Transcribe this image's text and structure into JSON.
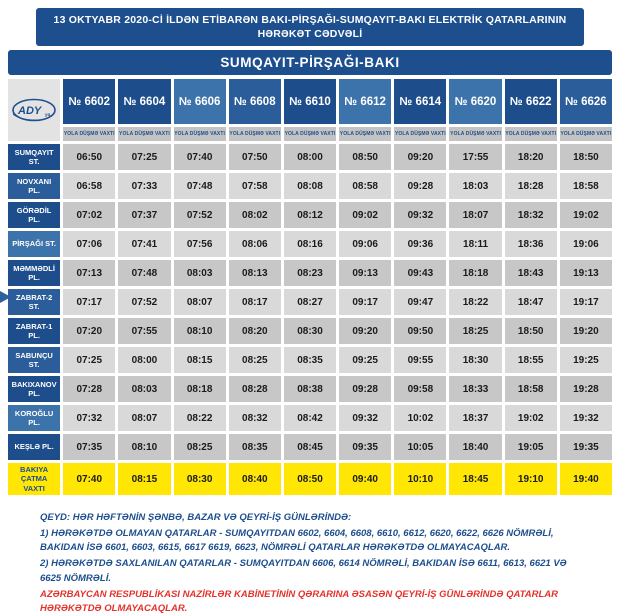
{
  "header": {
    "title_line1": "13 OKTYABR 2020-Cİ İLDƏN ETİBARƏN BAKI-PİRŞAĞI-SUMQAYIT-BAKI ELEKTRİK QATARLARININ",
    "title_line2": "HƏRƏKƏT CƏDVƏLİ",
    "route_title": "SUMQAYIT-PİRŞAĞI-BAKI"
  },
  "logo": {
    "text": "ADY",
    "suffix": "yq."
  },
  "table": {
    "departure_label": "YOLA DÜŞMƏ VAXTI",
    "columns": [
      {
        "number": "№ 6602",
        "shade": "dark"
      },
      {
        "number": "№ 6604",
        "shade": "dark"
      },
      {
        "number": "№ 6606",
        "shade": "light"
      },
      {
        "number": "№ 6608",
        "shade": "medium"
      },
      {
        "number": "№ 6610",
        "shade": "dark"
      },
      {
        "number": "№ 6612",
        "shade": "light"
      },
      {
        "number": "№ 6614",
        "shade": "dark"
      },
      {
        "number": "№ 6620",
        "shade": "light"
      },
      {
        "number": "№ 6622",
        "shade": "dark"
      },
      {
        "number": "№ 6626",
        "shade": "medium"
      }
    ],
    "rows": [
      {
        "station": "SUMQAYIT ST.",
        "shade": "dark",
        "times": [
          "06:50",
          "07:25",
          "07:40",
          "07:50",
          "08:00",
          "08:50",
          "09:20",
          "17:55",
          "18:20",
          "18:50"
        ]
      },
      {
        "station": "NOVXANI PL.",
        "shade": "medium",
        "times": [
          "06:58",
          "07:33",
          "07:48",
          "07:58",
          "08:08",
          "08:58",
          "09:28",
          "18:03",
          "18:28",
          "18:58"
        ]
      },
      {
        "station": "GÖRƏDİL PL.",
        "shade": "dark",
        "times": [
          "07:02",
          "07:37",
          "07:52",
          "08:02",
          "08:12",
          "09:02",
          "09:32",
          "18:07",
          "18:32",
          "19:02"
        ]
      },
      {
        "station": "PİRŞAĞI ST.",
        "shade": "light",
        "times": [
          "07:06",
          "07:41",
          "07:56",
          "08:06",
          "08:16",
          "09:06",
          "09:36",
          "18:11",
          "18:36",
          "19:06"
        ]
      },
      {
        "station": "MƏMMƏDLİ PL.",
        "shade": "dark",
        "times": [
          "07:13",
          "07:48",
          "08:03",
          "08:13",
          "08:23",
          "09:13",
          "09:43",
          "18:18",
          "18:43",
          "19:13"
        ]
      },
      {
        "station": "ZABRAT-2 ST.",
        "shade": "medium",
        "times": [
          "07:17",
          "07:52",
          "08:07",
          "08:17",
          "08:27",
          "09:17",
          "09:47",
          "18:22",
          "18:47",
          "19:17"
        ]
      },
      {
        "station": "ZABRAT-1 PL.",
        "shade": "dark",
        "times": [
          "07:20",
          "07:55",
          "08:10",
          "08:20",
          "08:30",
          "09:20",
          "09:50",
          "18:25",
          "18:50",
          "19:20"
        ]
      },
      {
        "station": "SABUNÇU ST.",
        "shade": "medium",
        "times": [
          "07:25",
          "08:00",
          "08:15",
          "08:25",
          "08:35",
          "09:25",
          "09:55",
          "18:30",
          "18:55",
          "19:25"
        ]
      },
      {
        "station": "BAKIXANOV PL.",
        "shade": "dark",
        "times": [
          "07:28",
          "08:03",
          "08:18",
          "08:28",
          "08:38",
          "09:28",
          "09:58",
          "18:33",
          "18:58",
          "19:28"
        ]
      },
      {
        "station": "KOROĞLU PL.",
        "shade": "light",
        "times": [
          "07:32",
          "08:07",
          "08:22",
          "08:32",
          "08:42",
          "09:32",
          "10:02",
          "18:37",
          "19:02",
          "19:32"
        ]
      },
      {
        "station": "KEŞLƏ PL.",
        "shade": "dark",
        "times": [
          "07:35",
          "08:10",
          "08:25",
          "08:35",
          "08:45",
          "09:35",
          "10:05",
          "18:40",
          "19:05",
          "19:35"
        ]
      }
    ],
    "arrival_row": {
      "station": "BAKIYA ÇATMA VAXTI",
      "times": [
        "07:40",
        "08:15",
        "08:30",
        "08:40",
        "08:50",
        "09:40",
        "10:10",
        "18:45",
        "19:10",
        "19:40"
      ]
    }
  },
  "notes": {
    "line1_bold": "QEYD:",
    "line1_rest": " HƏR HƏFTƏNİN ŞƏNBƏ, BAZAR VƏ QEYRİ-İŞ GÜNLƏRİNDƏ:",
    "line2_bold": "1) HƏRƏKƏTDƏ OLMAYAN QATARLAR",
    "line2_rest": " - SUMQAYITDAN 6602, 6604, 6608, 6610, 6612, 6620, 6622, 6626 NÖMRƏLİ, BAKIDAN İSƏ 6601, 6603, 6615, 6617 6619, 6623, NÖMRƏLİ QATARLAR HƏRƏKƏTDƏ OLMAYACAQLAR.",
    "line3_bold": "2) HƏRƏKƏTDƏ SAXLANILAN QATARLAR",
    "line3_rest": " - SUMQAYITDAN 6606, 6614 NÖMRƏLİ, BAKIDAN İSƏ 6611, 6613, 6621 VƏ 6625 NÖMRƏLİ.",
    "line4_red": "AZƏRBAYCAN RESPUBLİKASI NAZİRLƏR KABİNETİNİN QƏRARINA ƏSASƏN QEYRİ-İŞ GÜNLƏRİNDƏ QATARLAR HƏRƏKƏTDƏ OLMAYACAQLAR."
  },
  "colors": {
    "navy": "#1d4e8e",
    "navy_medium": "#2a5d9a",
    "navy_light": "#3d73ab",
    "gray_dark": "#c7c7c7",
    "gray_light": "#d9d9d9",
    "yellow": "#ffe605",
    "red": "#e4322b"
  }
}
